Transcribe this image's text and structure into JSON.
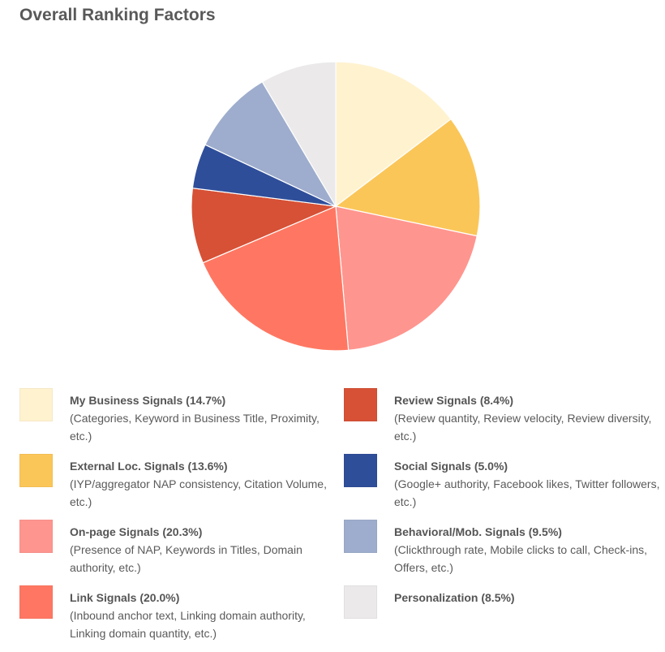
{
  "title": "Overall Ranking Factors",
  "chart_data": {
    "type": "pie",
    "title": "Overall Ranking Factors",
    "start_angle": "12 o'clock, clockwise",
    "legend_position": "bottom, two columns",
    "slices": [
      {
        "label": "My Business Signals",
        "value": 14.7,
        "color": "#FFF2CF",
        "description": "(Categories, Keyword in Business Title, Proximity, etc.)"
      },
      {
        "label": "External Loc. Signals",
        "value": 13.6,
        "color": "#FBC658",
        "description": "(IYP/aggregator NAP consistency, Citation Volume, etc.)"
      },
      {
        "label": "On-page Signals",
        "value": 20.3,
        "color": "#FF958F",
        "description": "(Presence of NAP, Keywords in Titles, Domain authority, etc.)"
      },
      {
        "label": "Link Signals",
        "value": 20.0,
        "color": "#FF7762",
        "description": "(Inbound anchor text, Linking domain authority, Linking domain quantity, etc.)"
      },
      {
        "label": "Review Signals",
        "value": 8.4,
        "color": "#D65136",
        "description": "(Review quantity, Review velocity, Review diversity, etc.)"
      },
      {
        "label": "Social Signals",
        "value": 5.0,
        "color": "#2F4E9A",
        "description": "(Google+ authority, Facebook likes, Twitter followers, etc.)"
      },
      {
        "label": "Behavioral/Mob. Signals",
        "value": 9.5,
        "color": "#9EADCD",
        "description": "(Clickthrough rate, Mobile clicks to call, Check-ins, Offers, etc.)"
      },
      {
        "label": "Personalization",
        "value": 8.5,
        "color": "#EBE9E9",
        "description": ""
      }
    ]
  },
  "legend": [
    {
      "title": "My Business Signals (14.7%)",
      "desc": "(Categories, Keyword in Business Title, Proximity, etc.)",
      "color": "#FFF2CF"
    },
    {
      "title": "External Loc. Signals (13.6%)",
      "desc": "(IYP/aggregator NAP consistency, Citation Volume, etc.)",
      "color": "#FBC658"
    },
    {
      "title": "On-page Signals (20.3%)",
      "desc": "(Presence of NAP, Keywords in Titles, Domain authority, etc.)",
      "color": "#FF958F"
    },
    {
      "title": "Link Signals (20.0%)",
      "desc": "(Inbound anchor text, Linking domain authority, Linking domain quantity, etc.)",
      "color": "#FF7762"
    },
    {
      "title": "Review Signals (8.4%)",
      "desc": "(Review quantity, Review velocity, Review diversity, etc.)",
      "color": "#D65136"
    },
    {
      "title": "Social Signals (5.0%)",
      "desc": "(Google+ authority, Facebook likes, Twitter followers, etc.)",
      "color": "#2F4E9A"
    },
    {
      "title": "Behavioral/Mob. Signals (9.5%)",
      "desc": "(Clickthrough rate, Mobile clicks to call, Check-ins, Offers, etc.)",
      "color": "#9EADCD"
    },
    {
      "title": "Personalization (8.5%)",
      "desc": "",
      "color": "#EBE9E9"
    }
  ]
}
